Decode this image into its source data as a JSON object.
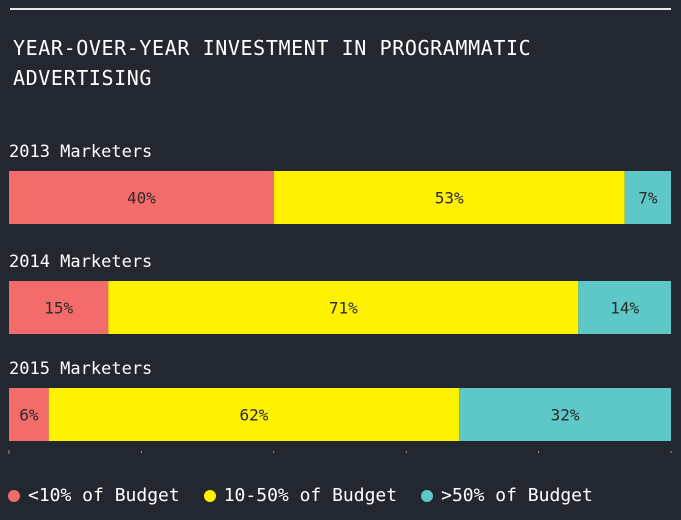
{
  "title": "YEAR-OVER-YEAR INVESTMENT IN PROGRAMMATIC ADVERTISING",
  "colors": {
    "background": "#23272f",
    "low": "#f36b6b",
    "mid": "#fff200",
    "high": "#5ec8c8",
    "segment_text": "#2b2b2b",
    "axis": "#9a9a9a"
  },
  "legend": [
    {
      "label": "<10% of Budget",
      "color": "#f36b6b"
    },
    {
      "label": "10-50% of Budget",
      "color": "#fff200"
    },
    {
      "label": ">50% of Budget",
      "color": "#5ec8c8"
    }
  ],
  "chart_data": {
    "type": "bar",
    "orientation": "horizontal",
    "stacked": true,
    "normalized": true,
    "title": "YEAR-OVER-YEAR INVESTMENT IN PROGRAMMATIC ADVERTISING",
    "categories": [
      "2013 Marketers",
      "2014 Marketers",
      "2015 Marketers"
    ],
    "series": [
      {
        "name": "<10% of Budget",
        "values": [
          40,
          15,
          6
        ],
        "labels": [
          "40%",
          "15%",
          "6%"
        ]
      },
      {
        "name": "10-50% of Budget",
        "values": [
          53,
          71,
          62
        ],
        "labels": [
          "53%",
          "71%",
          "62%"
        ]
      },
      {
        "name": ">50% of Budget",
        "values": [
          7,
          14,
          32
        ],
        "labels": [
          "7%",
          "14%",
          "32%"
        ]
      }
    ],
    "xlim": [
      0,
      100
    ],
    "legend_position": "bottom",
    "grid": false
  }
}
